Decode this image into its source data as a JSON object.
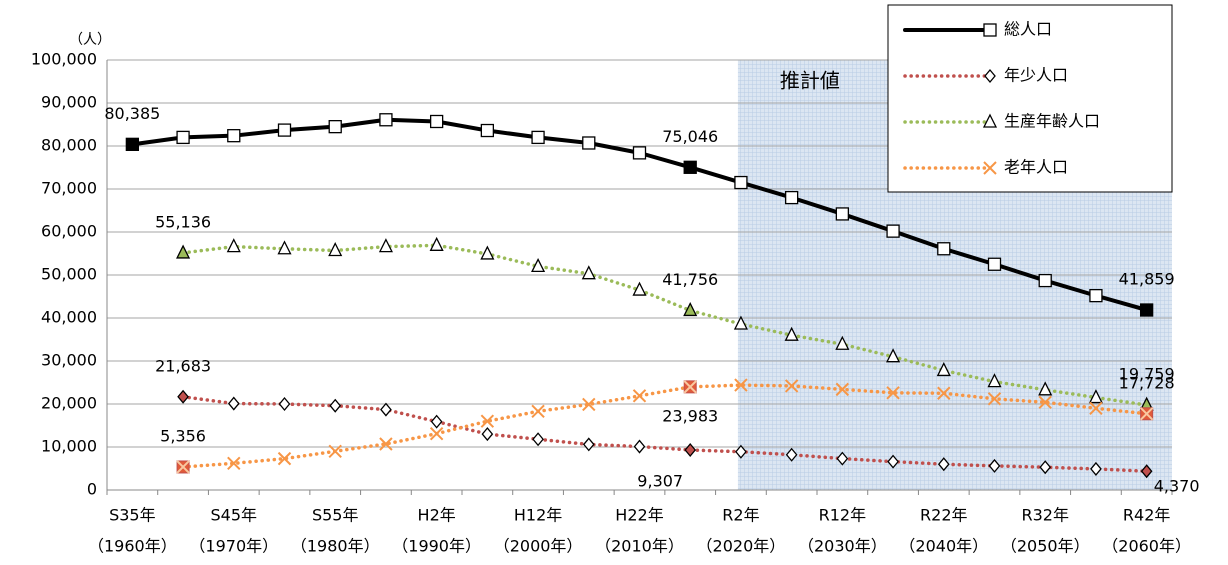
{
  "chart_data": {
    "type": "line",
    "y_unit": "（人）",
    "annotation": "推計値",
    "categories": [
      "S35年",
      null,
      "S45年",
      null,
      "S55年",
      null,
      "H2年",
      null,
      "H12年",
      null,
      "H22年",
      null,
      "R2年",
      null,
      "R12年",
      null,
      "R22年",
      null,
      "R32年",
      null,
      "R42年"
    ],
    "category_years": [
      "（1960年）",
      null,
      "（1970年）",
      null,
      "（1980年）",
      null,
      "（1990年）",
      null,
      "（2000年）",
      null,
      "（2010年）",
      null,
      "（2020年）",
      null,
      "（2030年）",
      null,
      "（2040年）",
      null,
      "（2050年）",
      null,
      "（2060年）"
    ],
    "ylim": [
      0,
      100000
    ],
    "yticks": [
      {
        "value": 0,
        "label": "0"
      },
      {
        "value": 10000,
        "label": "10,000"
      },
      {
        "value": 20000,
        "label": "20,000"
      },
      {
        "value": 30000,
        "label": "30,000"
      },
      {
        "value": 40000,
        "label": "40,000"
      },
      {
        "value": 50000,
        "label": "50,000"
      },
      {
        "value": 60000,
        "label": "60,000"
      },
      {
        "value": 70000,
        "label": "70,000"
      },
      {
        "value": 80000,
        "label": "80,000"
      },
      {
        "value": 90000,
        "label": "90,000"
      },
      {
        "value": 100000,
        "label": "100,000"
      }
    ],
    "grid": true,
    "series": [
      {
        "name": "総人口",
        "color": "#000000",
        "marker": "square",
        "line": "solid",
        "values": [
          80385,
          82000,
          82400,
          83700,
          84500,
          86100,
          85700,
          83600,
          82000,
          80700,
          78400,
          75046,
          71500,
          68000,
          64200,
          60200,
          56100,
          52500,
          48700,
          45200,
          41859
        ],
        "value_labels": [
          "80,385",
          null,
          null,
          null,
          null,
          null,
          null,
          null,
          null,
          null,
          null,
          "75,046",
          null,
          null,
          null,
          null,
          null,
          null,
          null,
          null,
          "41,859"
        ]
      },
      {
        "name": "年少人口",
        "color": "#c0504d",
        "marker": "diamond",
        "line": "dotted",
        "values": [
          null,
          21683,
          20100,
          20000,
          19600,
          18700,
          15900,
          13000,
          11800,
          10600,
          10100,
          9307,
          8900,
          8200,
          7300,
          6600,
          6000,
          5600,
          5300,
          4900,
          4370
        ],
        "value_labels": [
          null,
          "21,683",
          null,
          null,
          null,
          null,
          null,
          null,
          null,
          null,
          null,
          "9,307",
          null,
          null,
          null,
          null,
          null,
          null,
          null,
          null,
          "4,370"
        ]
      },
      {
        "name": "生産年齢人口",
        "color": "#9bbb59",
        "marker": "triangle",
        "line": "dotted",
        "values": [
          null,
          55136,
          56600,
          56100,
          55700,
          56600,
          56900,
          54900,
          52000,
          50300,
          46500,
          41756,
          38600,
          36000,
          33900,
          31000,
          27800,
          25200,
          23300,
          21500,
          19759
        ],
        "value_labels": [
          null,
          "55,136",
          null,
          null,
          null,
          null,
          null,
          null,
          null,
          null,
          null,
          "41,756",
          null,
          null,
          null,
          null,
          null,
          null,
          null,
          null,
          "19,759"
        ]
      },
      {
        "name": "老年人口",
        "color": "#f79646",
        "marker": "x",
        "line": "dotted",
        "values": [
          null,
          5356,
          6200,
          7300,
          9000,
          10700,
          13100,
          16000,
          18300,
          19900,
          21900,
          23983,
          24400,
          24200,
          23400,
          22600,
          22500,
          21200,
          20400,
          19000,
          17728
        ],
        "value_labels": [
          null,
          "5,356",
          null,
          null,
          null,
          null,
          null,
          null,
          null,
          null,
          null,
          "23,983",
          null,
          null,
          null,
          null,
          null,
          null,
          null,
          null,
          "17,728"
        ]
      }
    ]
  }
}
